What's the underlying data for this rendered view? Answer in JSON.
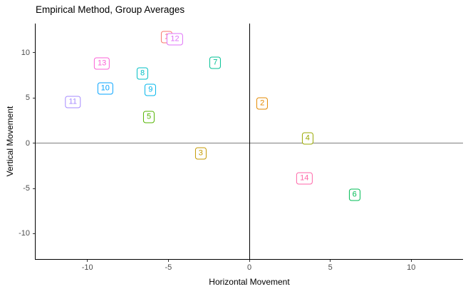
{
  "chart_data": {
    "type": "scatter",
    "title": "Empirical Method, Group Averages",
    "xlabel": "Horizontal Movement",
    "ylabel": "Vertical Movement",
    "xlim": [
      -13.2,
      13.2
    ],
    "ylim": [
      -12.8,
      13.2
    ],
    "x_ticks": [
      -10,
      -5,
      0,
      5,
      10
    ],
    "y_ticks": [
      -10,
      -5,
      0,
      5,
      10
    ],
    "grid": false,
    "legend": "none",
    "point_style": "label-box",
    "colors": {
      "axis_line": "#000000",
      "tick_mark": "#333333",
      "tick_text": "#4D4D4D",
      "title_text": "#000000"
    },
    "reference_lines": [
      {
        "axis": "y",
        "value": 0,
        "color": "#7F7F7F"
      },
      {
        "axis": "x",
        "value": 0,
        "color": "#000000"
      }
    ],
    "points": [
      {
        "label": "1",
        "x": -5.1,
        "y": 11.7,
        "color": "#F8766D"
      },
      {
        "label": "2",
        "x": 0.8,
        "y": 4.4,
        "color": "#E38900"
      },
      {
        "label": "3",
        "x": -3.0,
        "y": -1.1,
        "color": "#C49A00"
      },
      {
        "label": "4",
        "x": 3.6,
        "y": 0.5,
        "color": "#99A800"
      },
      {
        "label": "5",
        "x": -6.2,
        "y": 2.9,
        "color": "#53B400"
      },
      {
        "label": "6",
        "x": 6.5,
        "y": -5.7,
        "color": "#00BC56"
      },
      {
        "label": "7",
        "x": -2.1,
        "y": 8.9,
        "color": "#00C094"
      },
      {
        "label": "8",
        "x": -6.6,
        "y": 7.7,
        "color": "#00BFC4"
      },
      {
        "label": "9",
        "x": -6.1,
        "y": 5.9,
        "color": "#00B6EB"
      },
      {
        "label": "10",
        "x": -8.9,
        "y": 6.0,
        "color": "#06A4FF"
      },
      {
        "label": "11",
        "x": -10.9,
        "y": 4.5,
        "color": "#A58AFF"
      },
      {
        "label": "12",
        "x": -4.6,
        "y": 11.5,
        "color": "#DF70F8"
      },
      {
        "label": "13",
        "x": -9.1,
        "y": 8.8,
        "color": "#FB61D7"
      },
      {
        "label": "14",
        "x": 3.4,
        "y": -3.9,
        "color": "#FF66A8"
      }
    ]
  }
}
